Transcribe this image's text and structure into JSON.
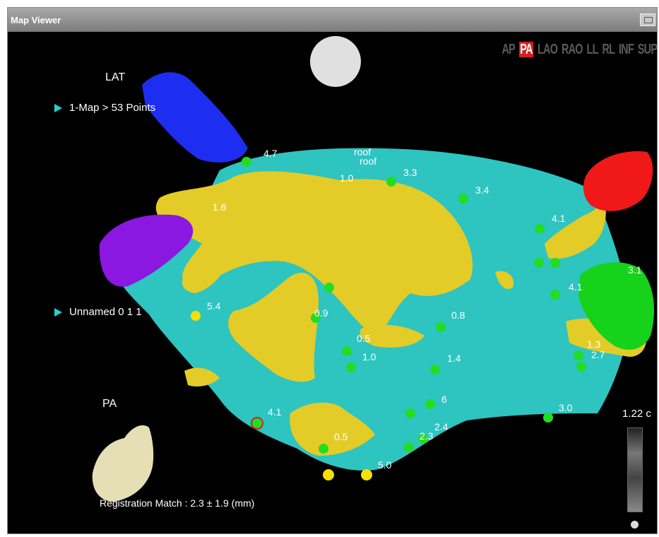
{
  "window": {
    "title": "Map Viewer"
  },
  "views": [
    "AP",
    "PA",
    "LAO",
    "RAO",
    "LL",
    "RL",
    "INF",
    "SUP"
  ],
  "active_view": "PA",
  "maps": [
    {
      "label": "1-Map > 53 Points"
    },
    {
      "label": "Unnamed 0 1 1"
    }
  ],
  "lat_label": "LAT",
  "orientation_label": "PA",
  "registration_text": "Registration Match : 2.3 ± 1.9 (mm)",
  "scale_value": "1.22 c",
  "point_labels": [
    "4.7",
    "roof",
    "roof",
    "3.3",
    "3.4",
    "1.6",
    "4.1",
    "1.0",
    "3.1",
    "4.1",
    "5.4",
    "0.9",
    "0.8",
    "0.5",
    "1.0",
    "1.4",
    "1.3",
    "2.7",
    "6",
    "4.1",
    "3.0",
    "2.4",
    "2.3",
    "0.5",
    "5.0"
  ],
  "colors": {
    "background": "#000000",
    "atrium": "#2ec4c0",
    "ct_overlay": "#e3cc28",
    "vein_blue": "#1d2ef0",
    "vein_purple": "#8a18e0",
    "vein_red": "#f01818",
    "vein_green": "#16d21b",
    "point_green": "#22dd22",
    "point_yellow": "#f4e000"
  }
}
